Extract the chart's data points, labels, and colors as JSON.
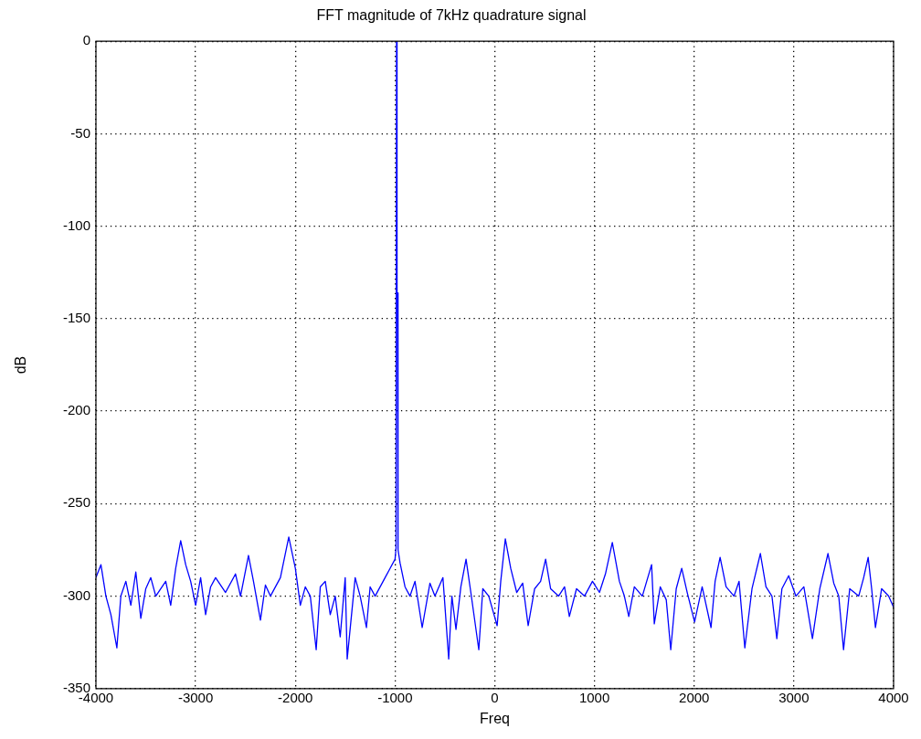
{
  "chart_data": {
    "type": "line",
    "title": "FFT magnitude of 7kHz quadrature signal",
    "xlabel": "Freq",
    "ylabel": "dB",
    "xlim": [
      -4000,
      4000
    ],
    "xticks": [
      -4000,
      -3000,
      -2000,
      -1000,
      0,
      1000,
      2000,
      3000,
      4000
    ],
    "ylim": [
      -350,
      0
    ],
    "yticks": [
      -350,
      -300,
      -250,
      -200,
      -150,
      -100,
      -50,
      0
    ],
    "grid": true,
    "legend": false,
    "marker": "none",
    "line_style": "solid",
    "series": [
      {
        "color": "#0000ff",
        "x": [
          -4000,
          -3950,
          -3900,
          -3850,
          -3790,
          -3750,
          -3700,
          -3650,
          -3600,
          -3550,
          -3500,
          -3450,
          -3400,
          -3300,
          -3250,
          -3200,
          -3150,
          -3100,
          -3050,
          -3000,
          -2950,
          -2900,
          -2850,
          -2800,
          -2700,
          -2600,
          -2550,
          -2470,
          -2420,
          -2350,
          -2300,
          -2250,
          -2150,
          -2066,
          -2000,
          -1950,
          -1900,
          -1850,
          -1791,
          -1750,
          -1700,
          -1650,
          -1600,
          -1550,
          -1500,
          -1480,
          -1400,
          -1350,
          -1287,
          -1250,
          -1200,
          -1100,
          -1050,
          -1000,
          -990,
          -985,
          -980,
          -975,
          -970,
          -950,
          -900,
          -850,
          -800,
          -728,
          -650,
          -600,
          -520,
          -462,
          -430,
          -389,
          -340,
          -288,
          -240,
          -160,
          -120,
          -60,
          24,
          60,
          106,
          160,
          220,
          280,
          335,
          400,
          460,
          510,
          560,
          640,
          700,
          748,
          820,
          900,
          980,
          1050,
          1110,
          1179,
          1250,
          1300,
          1344,
          1400,
          1480,
          1573,
          1600,
          1660,
          1720,
          1765,
          1820,
          1875,
          1930,
          2004,
          2080,
          2169,
          2210,
          2260,
          2320,
          2400,
          2450,
          2508,
          2580,
          2664,
          2720,
          2780,
          2829,
          2880,
          2948,
          3020,
          3100,
          3186,
          3260,
          3342,
          3400,
          3450,
          3498,
          3560,
          3650,
          3700,
          3745,
          3780,
          3818,
          3880,
          3950,
          4000
        ],
        "values": [
          -290,
          -283,
          -300,
          -310,
          -328,
          -300,
          -292,
          -305,
          -287,
          -312,
          -296,
          -290,
          -300,
          -292,
          -305,
          -285,
          -270,
          -283,
          -292,
          -305,
          -290,
          -310,
          -295,
          -290,
          -298,
          -288,
          -300,
          -278,
          -292,
          -313,
          -294,
          -300,
          -290,
          -268,
          -285,
          -305,
          -295,
          -300,
          -329,
          -295,
          -292,
          -310,
          -300,
          -322,
          -290,
          -334,
          -290,
          -300,
          -317,
          -295,
          -300,
          -290,
          -285,
          -280,
          -274,
          0,
          -136,
          -136,
          -275,
          -282,
          -295,
          -300,
          -292,
          -317,
          -293,
          -300,
          -290,
          -334,
          -300,
          -318,
          -295,
          -280,
          -298,
          -329,
          -296,
          -300,
          -316,
          -292,
          -269,
          -285,
          -298,
          -293,
          -316,
          -296,
          -292,
          -280,
          -296,
          -300,
          -295,
          -311,
          -296,
          -300,
          -292,
          -298,
          -288,
          -271,
          -292,
          -300,
          -311,
          -295,
          -300,
          -283,
          -315,
          -295,
          -302,
          -329,
          -296,
          -285,
          -298,
          -314,
          -295,
          -317,
          -292,
          -279,
          -295,
          -300,
          -292,
          -328,
          -296,
          -277,
          -295,
          -300,
          -323,
          -296,
          -289,
          -300,
          -295,
          -323,
          -296,
          -277,
          -293,
          -300,
          -329,
          -296,
          -300,
          -290,
          -279,
          -296,
          -317,
          -296,
          -300,
          -306
        ]
      }
    ]
  }
}
